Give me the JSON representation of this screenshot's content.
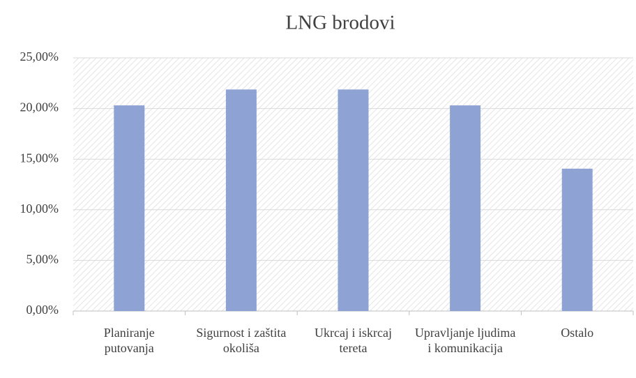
{
  "chart_data": {
    "type": "bar",
    "title": "LNG brodovi",
    "categories": [
      "Planiranje putovanja",
      "Sigurnost i zaštita okoliša",
      "Ukrcaj i iskrcaj tereta",
      "Upravljanje ljudima i komunikacija",
      "Ostalo"
    ],
    "values": [
      20.31,
      21.88,
      21.88,
      20.31,
      14.06
    ],
    "color": "#8fa2d4",
    "ylim": [
      0,
      25
    ],
    "yticks": [
      {
        "value": 0,
        "label": "0,00%"
      },
      {
        "value": 5,
        "label": "5,00%"
      },
      {
        "value": 10,
        "label": "10,00%"
      },
      {
        "value": 15,
        "label": "15,00%"
      },
      {
        "value": 20,
        "label": "20,00%"
      },
      {
        "value": 25,
        "label": "25,00%"
      }
    ],
    "grid": true
  }
}
